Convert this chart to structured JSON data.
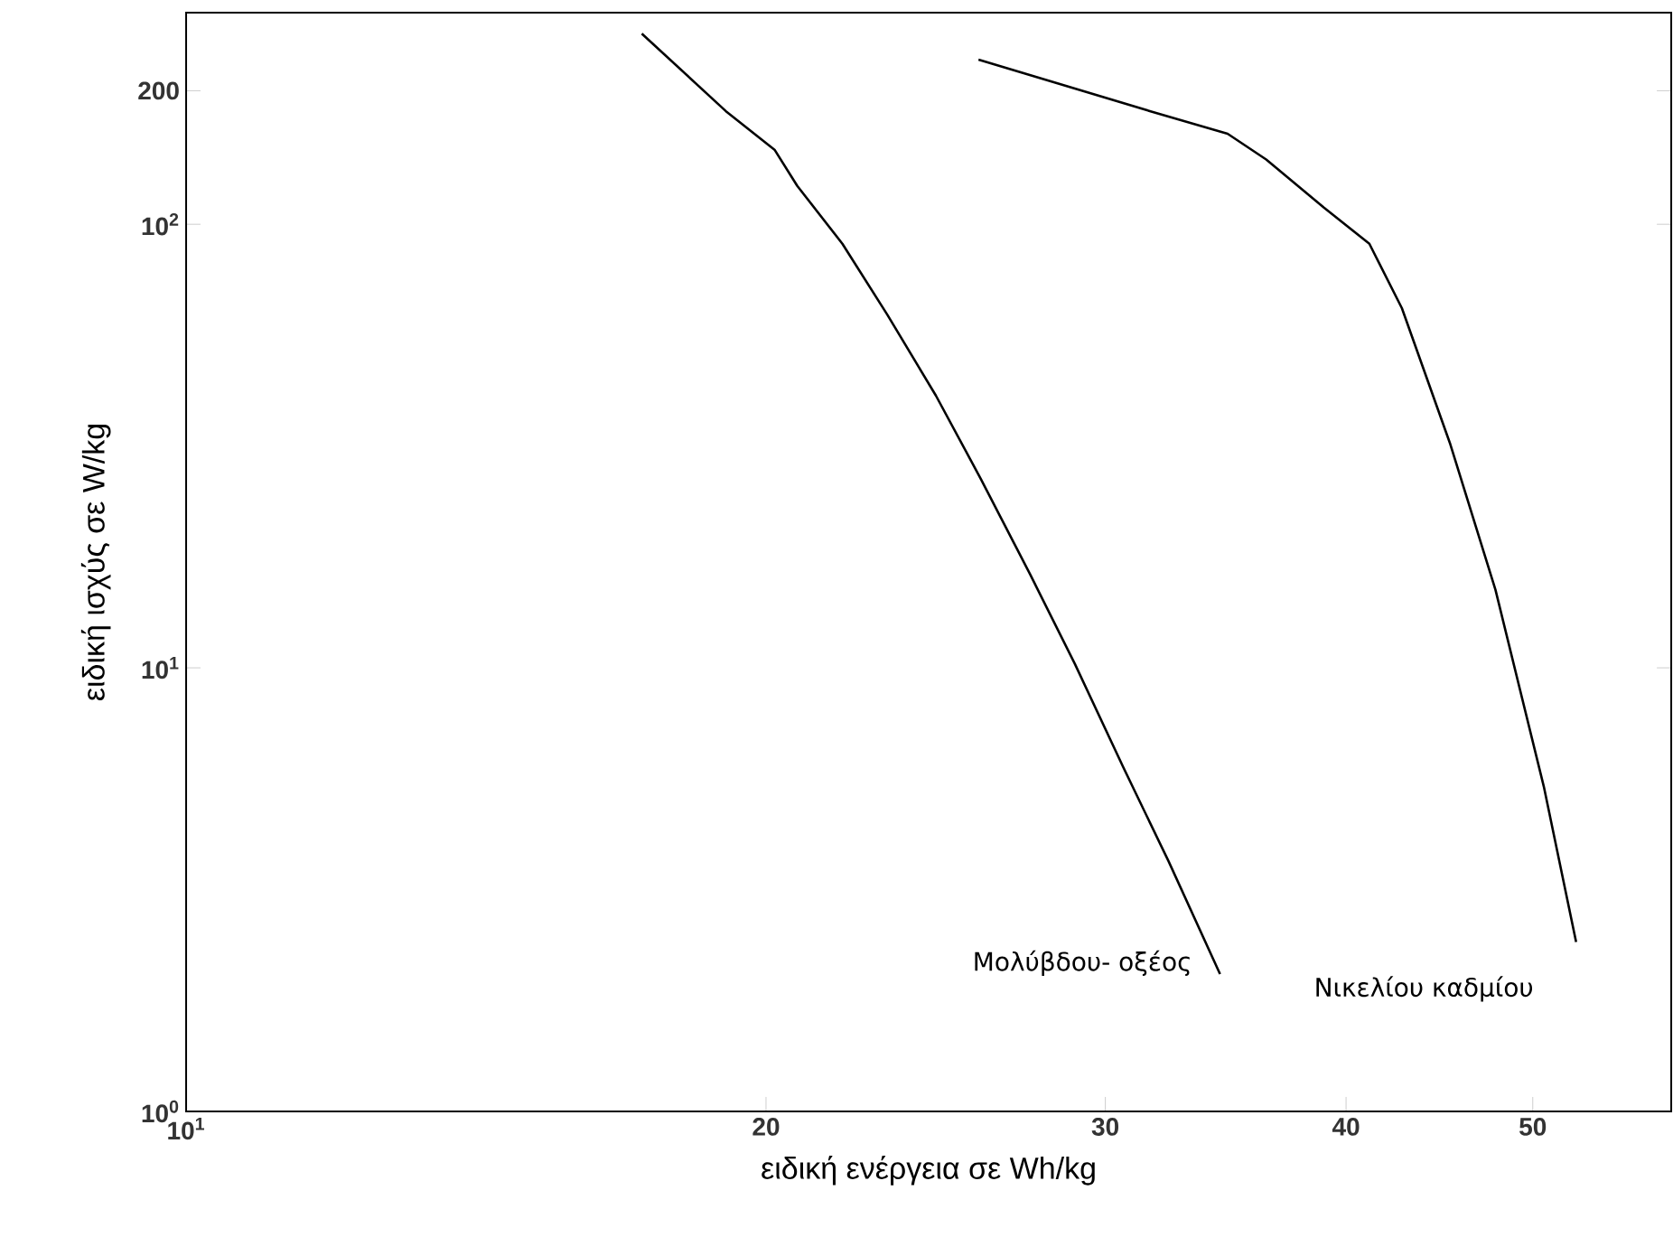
{
  "chart_data": {
    "type": "line",
    "log": "xy",
    "xlabel": "ειδική ενέργεια σε Wh/kg",
    "ylabel": "ειδική ισχύς σε W/kg",
    "xlim": [
      10,
      59
    ],
    "ylim": [
      1,
      300
    ],
    "xticks": [
      {
        "value": 10,
        "label": "10$^{1}$"
      },
      20,
      30,
      40,
      50
    ],
    "yticks": [
      {
        "value": 1,
        "label": "10$^{0}$"
      },
      {
        "value": 10,
        "label": "10$^{1}$"
      },
      {
        "value": 100,
        "label": "10$^{2}$"
      },
      200
    ],
    "series": [
      {
        "name": "Μολύβδου- οξέος",
        "color": "#000000",
        "x": [
          17.24,
          19.06,
          20.21,
          20.76,
          21.91,
          23.12,
          24.5,
          25.86,
          27.41,
          28.93,
          30.65,
          32.36,
          34.41
        ],
        "values": [
          269,
          180,
          147,
          122,
          90.4,
          62.5,
          41.1,
          26.6,
          16.3,
          10.2,
          5.97,
          3.66,
          2.04
        ]
      },
      {
        "name": "Νικελίου καδμίου",
        "color": "#000000",
        "x": [
          25.78,
          31.64,
          34.72,
          36.36,
          38.96,
          41.13,
          42.76,
          45.31,
          47.82,
          50.67,
          52.66
        ],
        "values": [
          235,
          180,
          160,
          140,
          109,
          90.4,
          64.7,
          31.9,
          15.0,
          5.39,
          2.41
        ]
      }
    ]
  }
}
